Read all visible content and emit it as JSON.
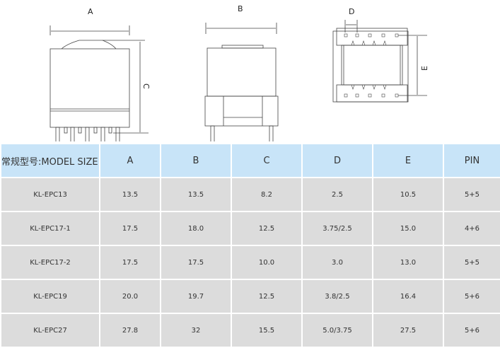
{
  "drawings": {
    "label_a": "A",
    "label_b": "B",
    "label_c": "C",
    "label_d": "D",
    "label_e": "E"
  },
  "table": {
    "headers": [
      "常规型号:MODEL SIZE",
      "A",
      "B",
      "C",
      "D",
      "E",
      "PIN"
    ],
    "rows": [
      [
        "KL-EPC13",
        "13.5",
        "13.5",
        "8.2",
        "2.5",
        "10.5",
        "5+5"
      ],
      [
        "KL-EPC17-1",
        "17.5",
        "18.0",
        "12.5",
        "3.75/2.5",
        "15.0",
        "4+6"
      ],
      [
        "KL-EPC17-2",
        "17.5",
        "17.5",
        "10.0",
        "3.0",
        "13.0",
        "5+5"
      ],
      [
        "KL-EPC19",
        "20.0",
        "19.7",
        "12.5",
        "3.8/2.5",
        "16.4",
        "5+6"
      ],
      [
        "KL-EPC27",
        "27.8",
        "32",
        "15.5",
        "5.0/3.75",
        "27.5",
        "5+6"
      ]
    ]
  }
}
